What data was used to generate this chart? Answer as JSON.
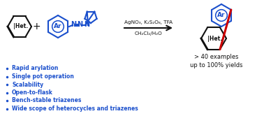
{
  "bg_color": "#ffffff",
  "blue": "#1a4fcc",
  "black": "#111111",
  "red": "#cc0000",
  "bullet_items": [
    "Rapid arylation",
    "Single pot operation",
    "Scalability",
    "Open-to-flask",
    "Bench-stable triazenes",
    "Wide scope of heterocycles and triazenes"
  ],
  "reagents_line1": "AgNO₃, K₂S₂O₈, TFA",
  "reagents_line2": "CH₂Cl₂/H₂O",
  "result_line1": "> 40 examples",
  "result_line2": "up to 100% yields",
  "het_label": "|Het.",
  "ar_label": "Ar",
  "het2_label": "|Het."
}
